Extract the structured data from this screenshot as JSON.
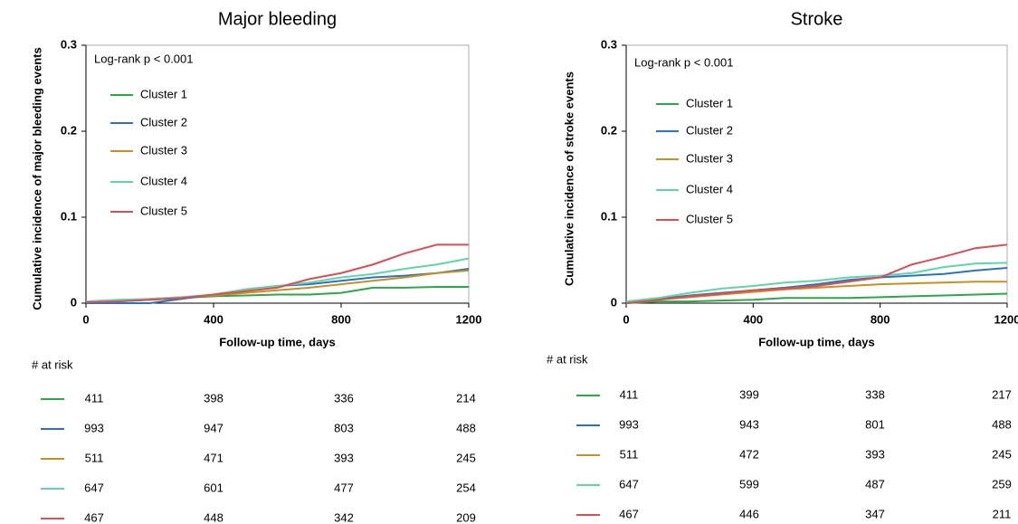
{
  "chart_data": [
    {
      "type": "line",
      "title": "Major bleeding",
      "xlabel": "Follow-up time, days",
      "ylabel": "Cumulative incidence of major bleeding events",
      "annotation": "Log-rank p < 0.001",
      "legend": "upper left",
      "x": [
        0,
        100,
        200,
        300,
        400,
        500,
        600,
        700,
        800,
        900,
        1000,
        1100,
        1200
      ],
      "xlim": [
        0,
        1200
      ],
      "xticks": [
        0,
        400,
        800,
        1200
      ],
      "ylim": [
        0,
        0.3
      ],
      "yticks": [
        0,
        0.1,
        0.2,
        0.3
      ],
      "series": [
        {
          "name": "Cluster 1",
          "color": "#2aa84a",
          "values": [
            0,
            0.002,
            0.004,
            0.006,
            0.008,
            0.009,
            0.01,
            0.01,
            0.012,
            0.018,
            0.018,
            0.019,
            0.019
          ]
        },
        {
          "name": "Cluster 2",
          "color": "#2b72c0",
          "values": [
            0,
            0,
            0,
            0.005,
            0.01,
            0.016,
            0.02,
            0.022,
            0.026,
            0.03,
            0.032,
            0.035,
            0.04
          ]
        },
        {
          "name": "Cluster 3",
          "color": "#c8901e",
          "values": [
            0.002,
            0.003,
            0.005,
            0.007,
            0.009,
            0.012,
            0.015,
            0.018,
            0.022,
            0.026,
            0.03,
            0.035,
            0.038
          ]
        },
        {
          "name": "Cluster 4",
          "color": "#5fd6a8",
          "values": [
            0.002,
            0.004,
            0.005,
            0.007,
            0.01,
            0.016,
            0.02,
            0.024,
            0.03,
            0.034,
            0.04,
            0.045,
            0.052
          ]
        },
        {
          "name": "Cluster 5",
          "color": "#dc4d55",
          "values": [
            0.001,
            0.002,
            0.004,
            0.006,
            0.01,
            0.014,
            0.018,
            0.028,
            0.035,
            0.045,
            0.058,
            0.068,
            0.068
          ]
        }
      ],
      "at_risk": {
        "label": "# at risk",
        "rows": [
          [
            411,
            398,
            336,
            214
          ],
          [
            993,
            947,
            803,
            488
          ],
          [
            511,
            471,
            393,
            245
          ],
          [
            647,
            601,
            477,
            254
          ],
          [
            467,
            448,
            342,
            209
          ]
        ]
      }
    },
    {
      "type": "line",
      "title": "Stroke",
      "xlabel": "Follow-up time, days",
      "ylabel": "Cumulative incidence of stroke events",
      "annotation": "Log-rank p < 0.001",
      "legend": "upper left",
      "x": [
        0,
        100,
        200,
        300,
        400,
        500,
        600,
        700,
        800,
        900,
        1000,
        1100,
        1200
      ],
      "xlim": [
        0,
        1200
      ],
      "xticks": [
        0,
        400,
        800,
        1200
      ],
      "ylim": [
        0,
        0.3
      ],
      "yticks": [
        0,
        0.1,
        0.2,
        0.3
      ],
      "series": [
        {
          "name": "Cluster 1",
          "color": "#2aa84a",
          "values": [
            0,
            0.002,
            0.002,
            0.003,
            0.004,
            0.006,
            0.006,
            0.006,
            0.007,
            0.008,
            0.009,
            0.01,
            0.011
          ]
        },
        {
          "name": "Cluster 2",
          "color": "#2b72c0",
          "values": [
            0,
            0.005,
            0.009,
            0.012,
            0.015,
            0.018,
            0.022,
            0.027,
            0.03,
            0.032,
            0.034,
            0.038,
            0.041
          ]
        },
        {
          "name": "Cluster 3",
          "color": "#c8901e",
          "values": [
            0,
            0.004,
            0.007,
            0.01,
            0.013,
            0.016,
            0.018,
            0.02,
            0.022,
            0.023,
            0.024,
            0.025,
            0.025
          ]
        },
        {
          "name": "Cluster 4",
          "color": "#5fd6a8",
          "values": [
            0.002,
            0.006,
            0.012,
            0.017,
            0.02,
            0.024,
            0.026,
            0.03,
            0.032,
            0.035,
            0.042,
            0.046,
            0.047
          ]
        },
        {
          "name": "Cluster 5",
          "color": "#dc4d55",
          "values": [
            0,
            0.004,
            0.008,
            0.011,
            0.015,
            0.017,
            0.02,
            0.025,
            0.03,
            0.045,
            0.054,
            0.064,
            0.068
          ]
        }
      ],
      "at_risk": {
        "label": "# at risk",
        "rows": [
          [
            411,
            399,
            338,
            217
          ],
          [
            993,
            943,
            801,
            488
          ],
          [
            511,
            472,
            393,
            245
          ],
          [
            647,
            599,
            487,
            259
          ],
          [
            467,
            446,
            347,
            211
          ]
        ]
      }
    }
  ]
}
